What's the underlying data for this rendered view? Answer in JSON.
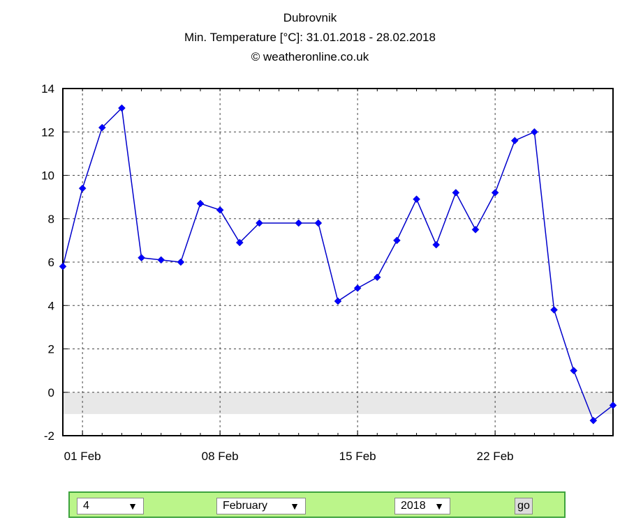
{
  "header": {
    "location": "Dubrovnik",
    "subtitle": "Min. Temperature [°C]: 31.01.2018 - 28.02.2018",
    "credit": "© weatheronline.co.uk"
  },
  "chart_data": {
    "type": "line",
    "title": "Dubrovnik",
    "subtitle": "Min. Temperature [°C]: 31.01.2018 - 28.02.2018",
    "xlabel": "",
    "ylabel": "",
    "ylim": [
      -2,
      14
    ],
    "yticks": [
      -2,
      0,
      2,
      4,
      6,
      8,
      10,
      12,
      14
    ],
    "xticks": [
      "01 Feb",
      "08 Feb",
      "15 Feb",
      "22 Feb"
    ],
    "grid": true,
    "line_color": "#0000cc",
    "marker_color": "#0000ff",
    "below_zero_band_color": "#e8e8e8",
    "series": [
      {
        "dates": [
          "31.01",
          "01.02",
          "02.02",
          "03.02",
          "04.02",
          "05.02",
          "06.02",
          "07.02",
          "08.02",
          "09.02",
          "10.02",
          "12.02",
          "13.02",
          "14.02",
          "15.02",
          "16.02",
          "17.02",
          "18.02",
          "19.02",
          "20.02",
          "21.02",
          "22.02",
          "23.02",
          "24.02",
          "25.02",
          "26.02",
          "27.02",
          "28.02"
        ],
        "values": [
          5.8,
          9.4,
          12.2,
          13.1,
          6.2,
          6.1,
          6.0,
          8.7,
          8.4,
          6.9,
          7.8,
          7.8,
          7.8,
          4.2,
          4.8,
          5.3,
          7.0,
          8.9,
          6.8,
          9.2,
          7.5,
          9.2,
          11.6,
          12.0,
          3.8,
          1.0,
          -1.3,
          -0.6
        ]
      }
    ]
  },
  "controls": {
    "day": "4",
    "month": "February",
    "year": "2018",
    "go_label": "go",
    "arrow": "▼"
  }
}
